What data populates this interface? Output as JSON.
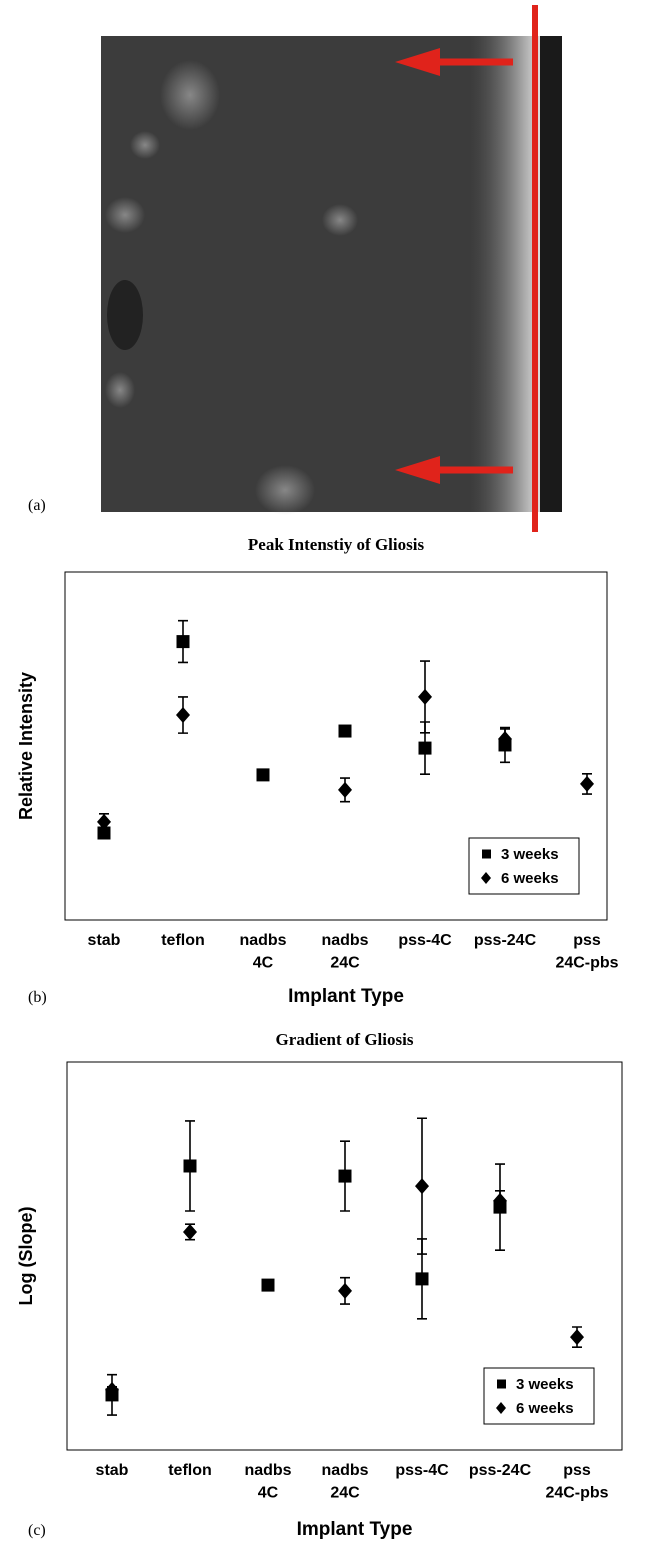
{
  "figure_a": {
    "label": "(a)"
  },
  "chart_data": [
    {
      "type": "scatter",
      "panel_label": "(b)",
      "title": "Peak Intenstiy of Gliosis",
      "x_label": "Implant Type",
      "y_label": "Relative Intensity",
      "categories": [
        "stab",
        "teflon",
        "nadbs\n4C",
        "nadbs\n24C",
        "pss-4C",
        "pss-24C",
        "pss\n24C-pbs"
      ],
      "ylim": [
        0,
        100
      ],
      "legend": "lower right",
      "series": [
        {
          "name": "3 weeks",
          "marker": "square",
          "color": "#000000",
          "values": [
            25,
            80,
            41.7,
            54.3,
            49.4,
            50.3,
            null
          ],
          "errors": [
            1,
            6,
            1,
            null,
            7.5,
            5,
            null
          ]
        },
        {
          "name": "6 weeks",
          "marker": "diamond",
          "color": "#000000",
          "values": [
            28.2,
            58.9,
            null,
            37.4,
            64.1,
            52,
            39.1
          ],
          "errors": [
            2.3,
            5.2,
            null,
            3.4,
            10.3,
            2.9,
            2.9
          ]
        }
      ]
    },
    {
      "type": "scatter",
      "panel_label": "(c)",
      "title": "Gradient of Gliosis",
      "x_label": "Implant Type",
      "y_label": "Log (Slope)",
      "categories": [
        "stab",
        "teflon",
        "nadbs\n4C",
        "nadbs\n24C",
        "pss-4C",
        "pss-24C",
        "pss\n24C-pbs"
      ],
      "ylim": [
        0,
        100
      ],
      "legend": "lower right",
      "series": [
        {
          "name": "3 weeks",
          "marker": "square",
          "color": "#000000",
          "values": [
            14.2,
            73.2,
            42.5,
            70.6,
            44.1,
            62.6,
            null
          ],
          "errors": [
            5.2,
            11.6,
            1.3,
            9,
            10.3,
            11.1,
            null
          ]
        },
        {
          "name": "6 weeks",
          "marker": "diamond",
          "color": "#000000",
          "values": [
            15.5,
            56.2,
            null,
            41,
            68,
            64.2,
            29.1
          ],
          "errors": [
            0.8,
            2,
            null,
            3.4,
            17.5,
            2.6,
            2.6
          ]
        }
      ]
    }
  ]
}
